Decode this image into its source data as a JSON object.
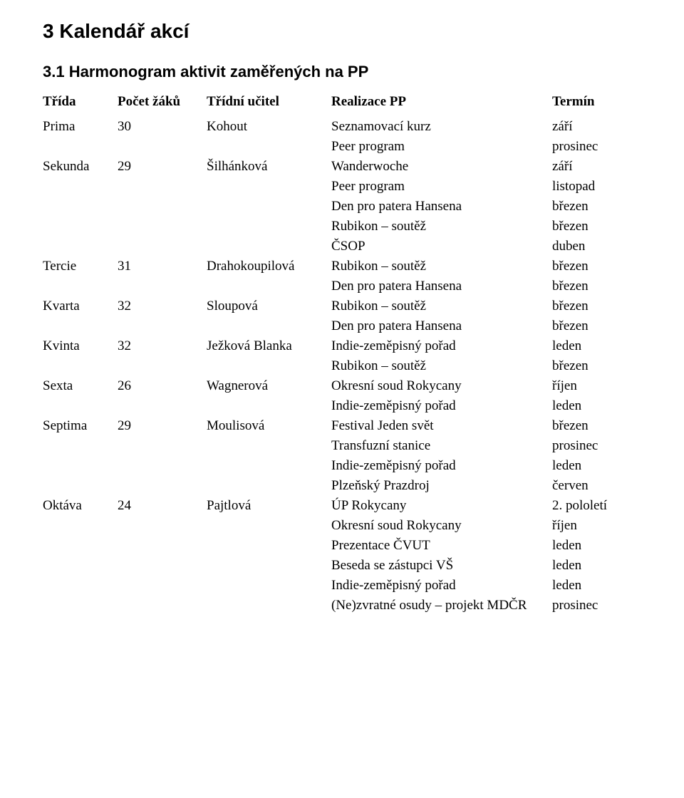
{
  "section_title": "3  Kalendář akcí",
  "subsection_title": "3.1  Harmonogram aktivit zaměřených na PP",
  "headers": {
    "class": "Třída",
    "count": "Počet žáků",
    "teacher": "Třídní učitel",
    "event": "Realizace PP",
    "term": "Termín"
  },
  "rows": [
    {
      "class": "Prima",
      "count": "30",
      "teacher": "Kohout",
      "event": "Seznamovací kurz",
      "term": "září"
    },
    {
      "class": "",
      "count": "",
      "teacher": "",
      "event": "Peer program",
      "term": "prosinec"
    },
    {
      "class": "Sekunda",
      "count": "29",
      "teacher": "Šilhánková",
      "event": "Wanderwoche",
      "term": "září"
    },
    {
      "class": "",
      "count": "",
      "teacher": "",
      "event": "Peer program",
      "term": "listopad"
    },
    {
      "class": "",
      "count": "",
      "teacher": "",
      "event": "Den pro patera Hansena",
      "term": "březen"
    },
    {
      "class": "",
      "count": "",
      "teacher": "",
      "event": "Rubikon – soutěž",
      "term": "březen"
    },
    {
      "class": "",
      "count": "",
      "teacher": "",
      "event": "ČSOP",
      "term": "duben"
    },
    {
      "class": "Tercie",
      "count": "31",
      "teacher": "Drahokoupilová",
      "event": "Rubikon – soutěž",
      "term": "březen"
    },
    {
      "class": "",
      "count": "",
      "teacher": "",
      "event": "Den pro patera Hansena",
      "term": "březen"
    },
    {
      "class": "Kvarta",
      "count": "32",
      "teacher": "Sloupová",
      "event": "Rubikon – soutěž",
      "term": "březen"
    },
    {
      "class": "",
      "count": "",
      "teacher": "",
      "event": "Den pro patera Hansena",
      "term": "březen"
    },
    {
      "class": "Kvinta",
      "count": "32",
      "teacher": "Ježková Blanka",
      "event": "Indie-zeměpisný pořad",
      "term": "leden"
    },
    {
      "class": "",
      "count": "",
      "teacher": "",
      "event": "Rubikon – soutěž",
      "term": "březen"
    },
    {
      "class": "Sexta",
      "count": "26",
      "teacher": "Wagnerová",
      "event": "Okresní soud Rokycany",
      "term": "říjen"
    },
    {
      "class": "",
      "count": "",
      "teacher": "",
      "event": "Indie-zeměpisný pořad",
      "term": "leden"
    },
    {
      "class": "Septima",
      "count": "29",
      "teacher": "Moulisová",
      "event": "Festival Jeden svět",
      "term": "březen"
    },
    {
      "class": "",
      "count": "",
      "teacher": "",
      "event": "Transfuzní stanice",
      "term": "prosinec"
    },
    {
      "class": "",
      "count": "",
      "teacher": "",
      "event": "Indie-zeměpisný pořad",
      "term": "leden"
    },
    {
      "class": "",
      "count": "",
      "teacher": "",
      "event": "Plzeňský Prazdroj",
      "term": "červen"
    },
    {
      "class": "Oktáva",
      "count": "24",
      "teacher": "Pajtlová",
      "event": "ÚP Rokycany",
      "term": "2. pololetí"
    },
    {
      "class": "",
      "count": "",
      "teacher": "",
      "event": "Okresní soud Rokycany",
      "term": "říjen"
    },
    {
      "class": "",
      "count": "",
      "teacher": "",
      "event": "Prezentace ČVUT",
      "term": "leden"
    },
    {
      "class": "",
      "count": "",
      "teacher": "",
      "event": "Beseda se zástupci VŠ",
      "term": "leden"
    },
    {
      "class": "",
      "count": "",
      "teacher": "",
      "event": "Indie-zeměpisný pořad",
      "term": "leden"
    },
    {
      "class": "",
      "count": "",
      "teacher": "",
      "event": "(Ne)zvratné osudy – projekt MDČR",
      "term": "prosinec"
    }
  ]
}
